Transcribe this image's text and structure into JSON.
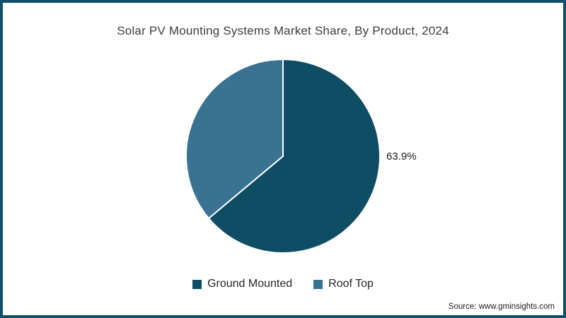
{
  "frame": {
    "border_color": "#10506a",
    "background": "#ffffff"
  },
  "chart_data": {
    "type": "pie",
    "title": "Solar PV Mounting Systems Market Share, By Product, 2024",
    "series": [
      {
        "name": "Ground Mounted",
        "value": 63.9,
        "pct_label": "63.9%",
        "color": "#0e4d63"
      },
      {
        "name": "Roof Top",
        "value": 36.1,
        "pct_label": "",
        "color": "#3a7292"
      }
    ],
    "start_angle_deg": -90,
    "direction": "clockwise",
    "slice_border_color": "#ffffff",
    "legend_position": "bottom",
    "data_label_shown": "63.9%"
  },
  "legend": {
    "items": [
      {
        "label": "Ground Mounted",
        "color": "#0e4d63"
      },
      {
        "label": "Roof Top",
        "color": "#3a7292"
      }
    ]
  },
  "footer": {
    "source": "Source: www.gminsights.com"
  }
}
